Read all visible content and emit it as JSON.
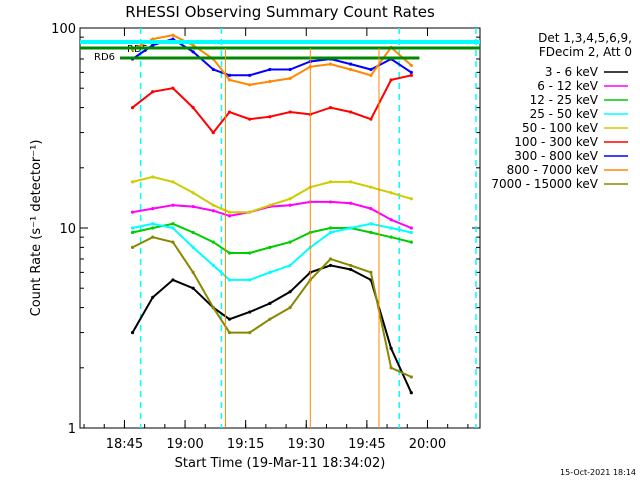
{
  "chart_data": {
    "type": "line",
    "title": "RHESSI Observing Summary Count Rates",
    "xlabel": "Start Time (19-Mar-11 18:34:02)",
    "ylabel": "Count Rate (s⁻¹ detector⁻¹)",
    "y_scale": "log",
    "ylim": [
      1,
      100
    ],
    "xlim": [
      "18:34",
      "20:13"
    ],
    "x_ticks": [
      "18:45",
      "19:00",
      "19:15",
      "19:30",
      "19:45",
      "20:00"
    ],
    "y_ticks": [
      "1",
      "10",
      "100"
    ],
    "legend_header": [
      "Det 1,3,4,5,6,9,",
      "FDecim 2, Att 0"
    ],
    "legend_position": "right",
    "timestamp": "15-Oct-2021 18:14",
    "annotations": {
      "rd5": "RD5",
      "rd6": "RD6",
      "rd5_interval": [
        "18:34",
        "20:13"
      ],
      "rd6_interval": [
        "18:34",
        "19:58"
      ],
      "data_gaps": [
        [
          "19:10",
          "19:11"
        ],
        [
          "19:31",
          "19:32"
        ],
        [
          "19:48",
          "19:49"
        ]
      ],
      "saa_bounds": [
        [
          "18:49",
          "19:09"
        ],
        [
          "19:53",
          "20:12"
        ]
      ]
    },
    "x": [
      "18:47",
      "18:52",
      "18:57",
      "19:02",
      "19:07",
      "19:11",
      "19:16",
      "19:21",
      "19:26",
      "19:31",
      "19:36",
      "19:41",
      "19:46",
      "19:51",
      "19:56"
    ],
    "series": [
      {
        "name": "3 - 6 keV",
        "color": "#000000",
        "values": [
          3,
          4.5,
          5.5,
          5,
          4,
          3.5,
          3.8,
          4.2,
          4.8,
          6,
          6.5,
          6.2,
          5.5,
          2.5,
          1.5
        ]
      },
      {
        "name": "6 - 12 keV",
        "color": "#ff00ff",
        "values": [
          12,
          12.5,
          13,
          12.8,
          12.2,
          11.5,
          12,
          12.8,
          13,
          13.5,
          13.5,
          13.3,
          12.5,
          11,
          10
        ]
      },
      {
        "name": "12 - 25 keV",
        "color": "#00cc00",
        "values": [
          9.5,
          10,
          10.5,
          9.5,
          8.5,
          7.5,
          7.5,
          8,
          8.5,
          9.5,
          10,
          10,
          9.5,
          9,
          8.5
        ]
      },
      {
        "name": "25 - 50 keV",
        "color": "#00ffff",
        "values": [
          10,
          10.5,
          10,
          8,
          6.5,
          5.5,
          5.5,
          6,
          6.5,
          8,
          9.5,
          10,
          10.5,
          10,
          9.5
        ]
      },
      {
        "name": "50 - 100 keV",
        "color": "#cccc00",
        "values": [
          17,
          18,
          17,
          15,
          13,
          12,
          12,
          13,
          14,
          16,
          17,
          17,
          16,
          15,
          14
        ]
      },
      {
        "name": "100 - 300 keV",
        "color": "#ff0000",
        "values": [
          40,
          48,
          50,
          40,
          30,
          38,
          35,
          36,
          38,
          37,
          40,
          38,
          35,
          55,
          58
        ]
      },
      {
        "name": "300 - 800 keV",
        "color": "#0000ff",
        "values": [
          70,
          82,
          88,
          76,
          62,
          58,
          58,
          62,
          62,
          68,
          70,
          66,
          62,
          70,
          60
        ]
      },
      {
        "name": "800 - 7000 keV",
        "color": "#ff8800",
        "values": [
          78,
          88,
          92,
          82,
          70,
          55,
          52,
          54,
          56,
          64,
          66,
          62,
          58,
          80,
          65
        ]
      },
      {
        "name": "7000 - 15000 keV",
        "color": "#888800",
        "values": [
          8,
          9,
          8.5,
          6,
          4,
          3,
          3,
          3.5,
          4,
          5.5,
          7,
          6.5,
          6,
          2,
          1.8
        ]
      }
    ]
  }
}
